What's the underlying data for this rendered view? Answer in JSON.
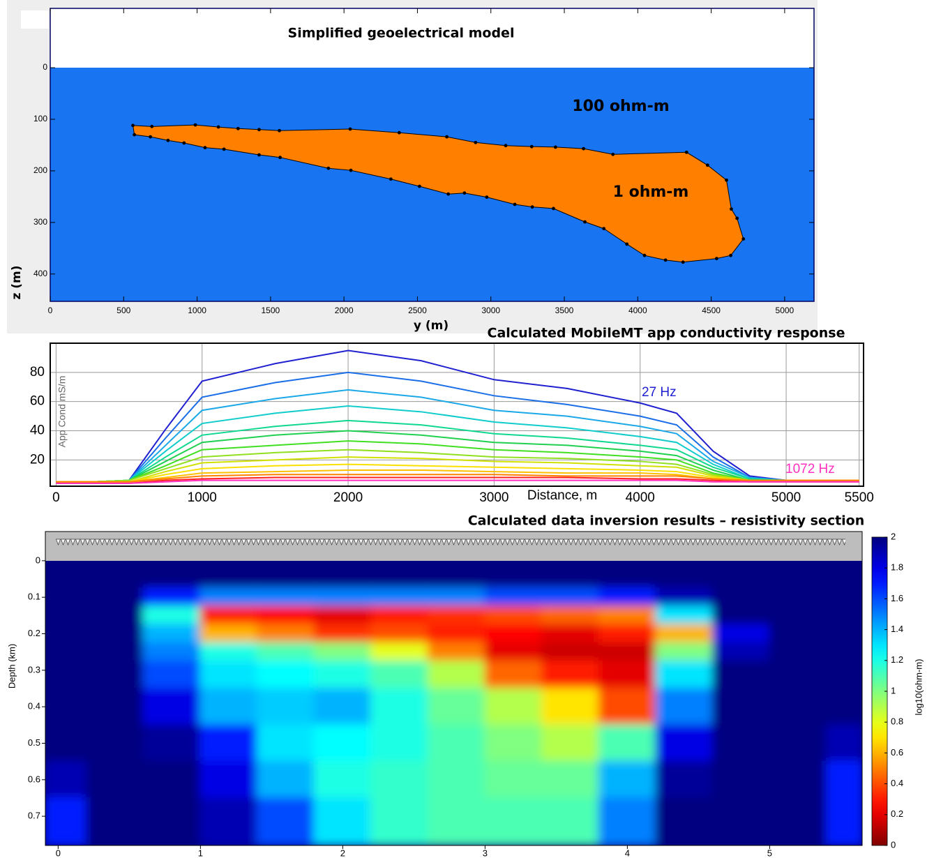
{
  "chart_data": [
    {
      "type": "polygon",
      "title": "Simplified geoelectrical model",
      "x_label": "y (m)",
      "y_label": "z (m)",
      "labels": [
        "100 ohm-m",
        "1 ohm-m"
      ],
      "x": [
        563,
        692,
        988,
        1145,
        1279,
        1422,
        1560,
        2042,
        2376,
        2700,
        2896,
        3101,
        3278,
        3440,
        3631,
        3831,
        4332,
        4475,
        4604,
        4637,
        4676,
        4719,
        4633,
        4537,
        4308,
        4189,
        4046,
        3926,
        3769,
        3640,
        3426,
        3282,
        3163,
        2972,
        2820,
        2710,
        2514,
        2319,
        2047,
        1894,
        1565,
        1422,
        1183,
        1054,
        911,
        802,
        682,
        573
      ],
      "values": [
        112,
        114,
        111,
        115,
        118,
        120,
        122,
        119,
        126,
        134,
        145,
        151,
        153,
        154,
        157,
        168,
        164,
        189,
        218,
        274,
        292,
        332,
        364,
        370,
        377,
        373,
        364,
        342,
        312,
        299,
        273,
        270,
        265,
        251,
        243,
        245,
        230,
        216,
        199,
        195,
        174,
        169,
        158,
        155,
        146,
        141,
        134,
        130
      ],
      "color": "#ff8000",
      "background_color": "#1874f0",
      "xlim": [
        0,
        5200
      ],
      "xticks": [
        0,
        500,
        1000,
        1500,
        2000,
        2500,
        3000,
        3500,
        4000,
        4500,
        5000
      ],
      "ylim": [
        -115,
        453
      ],
      "yticks": [
        0,
        100,
        200,
        300,
        400
      ],
      "y_inverted": true
    },
    {
      "type": "line",
      "title": "Calculated MobileMT app conductivity response",
      "x_label": "Distance, m",
      "y_label": "App Cond mS/m",
      "x": [
        0,
        250,
        500,
        750,
        1000,
        1500,
        2000,
        2500,
        3000,
        3500,
        4000,
        4250,
        4500,
        4750,
        5000,
        5500
      ],
      "series": [
        {
          "name": "27 Hz",
          "color": "#2020d0",
          "values": [
            5,
            5,
            6,
            41,
            74,
            86,
            95,
            88,
            75,
            69,
            59,
            52,
            26,
            9,
            6,
            6
          ]
        },
        {
          "color": "#1a6ee8",
          "values": [
            5,
            5,
            6,
            35,
            63,
            73,
            80,
            74,
            64,
            58,
            50,
            44,
            22,
            8,
            6,
            6
          ]
        },
        {
          "color": "#1aa8e8",
          "values": [
            5,
            5,
            6,
            30,
            54,
            62,
            68,
            63,
            54,
            50,
            43,
            38,
            19,
            8,
            6,
            6
          ]
        },
        {
          "color": "#10cccc",
          "values": [
            5,
            5,
            6,
            26,
            45,
            52,
            57,
            53,
            46,
            42,
            36,
            32,
            17,
            7,
            6,
            6
          ]
        },
        {
          "color": "#10d890",
          "values": [
            5,
            5,
            6,
            22,
            37,
            43,
            47,
            44,
            38,
            35,
            30,
            27,
            15,
            7,
            6,
            6
          ]
        },
        {
          "color": "#20d050",
          "values": [
            5,
            5,
            6,
            19,
            32,
            37,
            40,
            37,
            32,
            30,
            26,
            23,
            13,
            6,
            6,
            6
          ]
        },
        {
          "color": "#40e020",
          "values": [
            5,
            5,
            6,
            16,
            27,
            30,
            33,
            31,
            27,
            25,
            22,
            20,
            11,
            6,
            6,
            6
          ]
        },
        {
          "color": "#90e020",
          "values": [
            5,
            5,
            6,
            14,
            22,
            25,
            27,
            25,
            22,
            21,
            19,
            17,
            10,
            6,
            6,
            6
          ]
        },
        {
          "color": "#d0e000",
          "values": [
            5,
            5,
            5,
            12,
            18,
            20,
            22,
            21,
            19,
            18,
            16,
            15,
            9,
            6,
            6,
            6
          ]
        },
        {
          "color": "#f8e000",
          "values": [
            5,
            5,
            5,
            10,
            14,
            16,
            17,
            16,
            15,
            14,
            13,
            12,
            8,
            6,
            6,
            6
          ]
        },
        {
          "color": "#ffc000",
          "values": [
            5,
            5,
            5,
            8,
            11,
            12,
            13,
            13,
            12,
            11,
            11,
            10,
            7,
            6,
            6,
            6
          ]
        },
        {
          "color": "#ff8000",
          "values": [
            5,
            5,
            5,
            7,
            9,
            10,
            10,
            10,
            10,
            9,
            9,
            9,
            7,
            6,
            6,
            6
          ]
        },
        {
          "color": "#ff2020",
          "values": [
            4,
            4,
            4,
            6,
            7,
            8,
            8,
            8,
            8,
            8,
            7,
            7,
            6,
            5,
            5,
            5
          ]
        },
        {
          "name": "1072 Hz",
          "color": "#ff30c0",
          "values": [
            4,
            4,
            4,
            5,
            6,
            6,
            6,
            6,
            6,
            6,
            6,
            6,
            5,
            5,
            5,
            5
          ]
        }
      ],
      "xlim": [
        -40,
        5530
      ],
      "xticks": [
        0,
        1000,
        2000,
        3000,
        4000,
        5000,
        5500
      ],
      "ylim": [
        2,
        100
      ],
      "yticks": [
        20,
        40,
        60,
        80
      ],
      "grid": true
    },
    {
      "type": "heatmap",
      "title": "Calculated data inversion results – resistivity section",
      "y_label": "Depth (km)",
      "colorbar_label": "log10(ohm-m)",
      "x": [
        0,
        0.4,
        0.8,
        1.2,
        1.6,
        2.0,
        2.4,
        2.8,
        3.2,
        3.6,
        4.0,
        4.4,
        4.8,
        5.2,
        5.6
      ],
      "y": [
        0.05,
        0.1,
        0.15,
        0.2,
        0.25,
        0.3,
        0.4,
        0.5,
        0.6,
        0.7
      ],
      "values": [
        [
          2,
          2,
          2,
          2,
          2,
          2,
          2,
          2,
          2,
          2,
          2,
          2,
          2,
          2,
          2
        ],
        [
          2,
          2,
          1.7,
          1.5,
          1.5,
          1.5,
          1.5,
          1.5,
          1.6,
          1.6,
          1.7,
          1.9,
          2,
          2,
          2
        ],
        [
          2,
          2,
          1.2,
          0.3,
          0.25,
          0.2,
          0.3,
          0.35,
          0.4,
          0.45,
          0.5,
          1.3,
          2,
          2,
          2
        ],
        [
          2,
          2,
          1.4,
          0.6,
          0.5,
          0.35,
          0.4,
          0.3,
          0.25,
          0.2,
          0.3,
          0.6,
          1.8,
          2,
          2
        ],
        [
          2,
          2,
          1.5,
          1.2,
          1.1,
          1.0,
          0.8,
          0.5,
          0.2,
          0.15,
          0.15,
          1.0,
          1.9,
          2,
          2
        ],
        [
          2,
          2,
          1.6,
          1.3,
          1.25,
          1.2,
          1.1,
          0.9,
          0.45,
          0.3,
          0.2,
          1.3,
          2,
          2,
          2
        ],
        [
          2,
          2,
          1.8,
          1.4,
          1.35,
          1.4,
          1.2,
          1.05,
          0.9,
          0.7,
          0.4,
          1.5,
          2,
          2,
          2
        ],
        [
          2,
          2,
          1.95,
          1.7,
          1.3,
          1.25,
          1.2,
          1.1,
          1.0,
          0.9,
          1.1,
          1.8,
          2,
          2,
          1.9
        ],
        [
          1.9,
          2,
          2,
          1.8,
          1.4,
          1.2,
          1.15,
          1.1,
          1.05,
          1.05,
          1.4,
          1.95,
          2,
          2,
          1.7
        ],
        [
          1.7,
          2,
          2,
          1.9,
          1.6,
          1.3,
          1.15,
          1.1,
          1.1,
          1.1,
          1.5,
          2,
          2,
          2,
          1.7
        ]
      ],
      "colormap": "jet_r",
      "clim": [
        0,
        2
      ],
      "cticks": [
        0,
        0.2,
        0.4,
        0.6,
        0.8,
        1,
        1.2,
        1.4,
        1.6,
        1.8,
        2
      ],
      "xlim": [
        -0.09,
        5.65
      ],
      "xticks": [
        0,
        1,
        2,
        3,
        4,
        5
      ],
      "ylim": [
        -0.08,
        0.78
      ],
      "yticks": [
        0,
        0.1,
        0.2,
        0.3,
        0.4,
        0.5,
        0.6,
        0.7
      ],
      "y_inverted": true
    }
  ]
}
